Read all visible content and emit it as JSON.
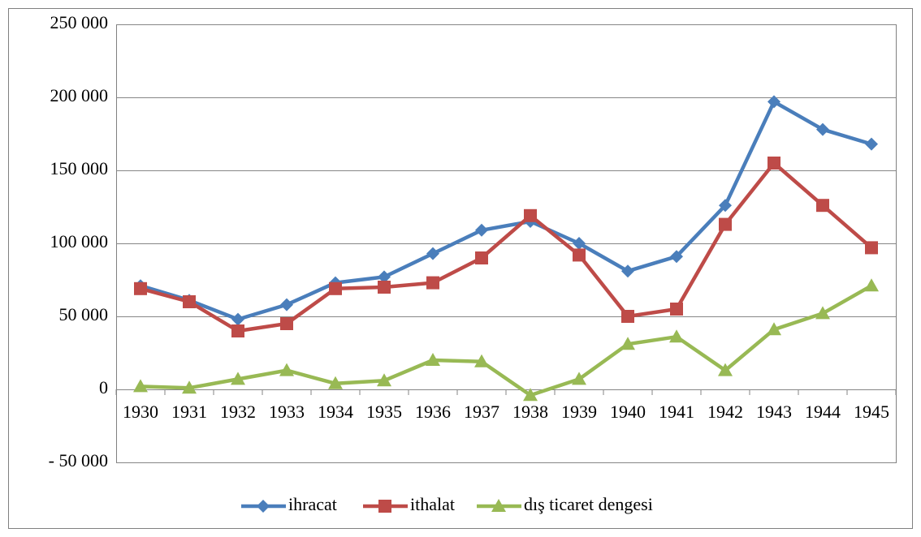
{
  "chart_data": {
    "type": "line",
    "categories": [
      "1930",
      "1931",
      "1932",
      "1933",
      "1934",
      "1935",
      "1936",
      "1937",
      "1938",
      "1939",
      "1940",
      "1941",
      "1942",
      "1943",
      "1944",
      "1945"
    ],
    "series": [
      {
        "name": "ihracat",
        "color": "#4a7ebb",
        "marker": "diamond",
        "values": [
          71000,
          61000,
          48000,
          58000,
          73000,
          77000,
          93000,
          109000,
          115000,
          100000,
          81000,
          91000,
          126000,
          197000,
          178000,
          168000
        ]
      },
      {
        "name": "ithalat",
        "color": "#be4b48",
        "marker": "square",
        "values": [
          69000,
          60000,
          40000,
          45000,
          69000,
          70000,
          73000,
          90000,
          119000,
          92000,
          50000,
          55000,
          113000,
          155000,
          126000,
          97000
        ]
      },
      {
        "name": "dış ticaret dengesi",
        "color": "#98b954",
        "marker": "triangle",
        "values": [
          2000,
          1000,
          7000,
          13000,
          4000,
          6000,
          20000,
          19000,
          -4000,
          7000,
          31000,
          36000,
          13000,
          41000,
          52000,
          71000
        ]
      }
    ],
    "ylim": [
      -50000,
      250000
    ],
    "yticks": [
      {
        "value": -50000,
        "label": "- 50 000"
      },
      0,
      {
        "value": 50000,
        "label": "50 000"
      },
      {
        "value": 100000,
        "label": "100 000"
      },
      {
        "value": 150000,
        "label": "150 000"
      },
      {
        "value": 200000,
        "label": "200 000"
      },
      {
        "value": 250000,
        "label": "250 000"
      }
    ],
    "grid": true,
    "legend": "bottom"
  }
}
